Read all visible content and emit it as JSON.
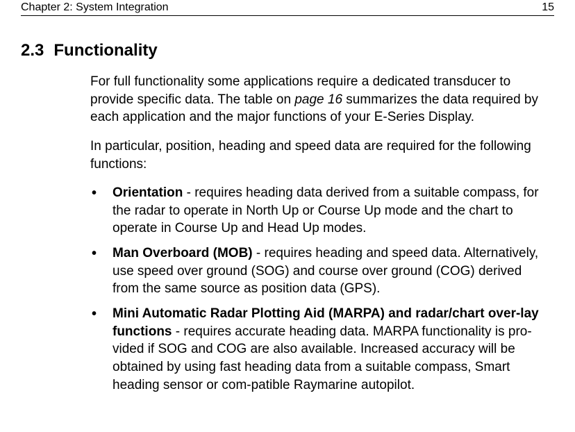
{
  "header": {
    "chapter": "Chapter 2: System Integration",
    "page_number": "15"
  },
  "section": {
    "number": "2.3",
    "title": "Functionality"
  },
  "paragraphs": {
    "p1_a": "For full functionality some applications require a dedicated transducer to provide specific data. The table on ",
    "p1_link": "page 16",
    "p1_b": " summarizes the data required by each application and the major functions of your E-Series Display.",
    "p2": "In particular, position, heading and speed data are required for the following functions:"
  },
  "bullets": [
    {
      "label": "Orientation",
      "text": " - requires heading data derived from a suitable compass, for the radar to operate in North Up or Course Up mode and the chart to operate in Course Up and Head Up modes."
    },
    {
      "label": "Man Overboard (MOB)",
      "text": " - requires heading and speed data. Alternatively, use speed over ground (SOG) and course over ground (COG) derived from the same source as position data (GPS)."
    },
    {
      "label": "Mini Automatic Radar Plotting Aid (MARPA) and radar/chart over-lay functions",
      "text": " - requires accurate heading data. MARPA functionality is pro-vided if SOG and COG are also available. Increased accuracy will be obtained by using fast heading data from a suitable compass, Smart heading sensor or com-patible Raymarine autopilot."
    }
  ]
}
